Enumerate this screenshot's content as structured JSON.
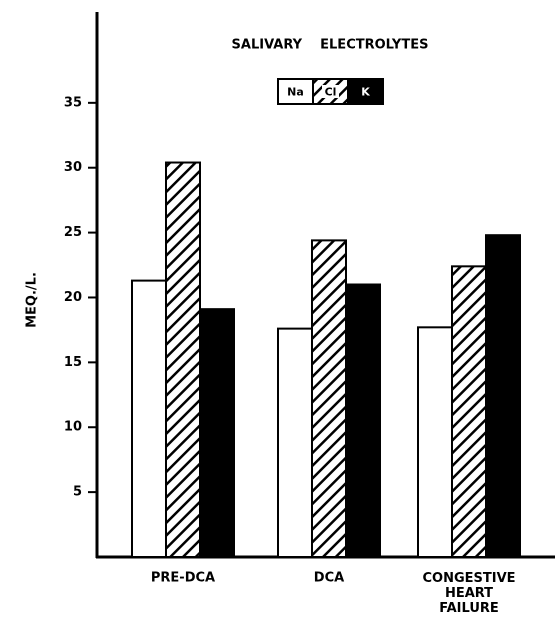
{
  "chart_data": {
    "type": "bar",
    "title": "SALIVARY    ELECTROLYTES",
    "y_label": "MEQ./L.",
    "categories": [
      "PRE-DCA",
      "DCA",
      "CONGESTIVE HEART FAILURE"
    ],
    "series": [
      {
        "name": "Na",
        "color": "#ffffff",
        "values": [
          21.3,
          17.6,
          17.7
        ]
      },
      {
        "name": "Cl",
        "color": "#000000",
        "hatch": true,
        "values": [
          30.4,
          24.4,
          22.4
        ]
      },
      {
        "name": "K",
        "color": "#000000",
        "values": [
          19.1,
          21,
          24.8
        ]
      }
    ],
    "ylim": [
      0,
      42
    ],
    "yticks": [
      5,
      10,
      15,
      20,
      25,
      30,
      35
    ],
    "grid": false
  }
}
